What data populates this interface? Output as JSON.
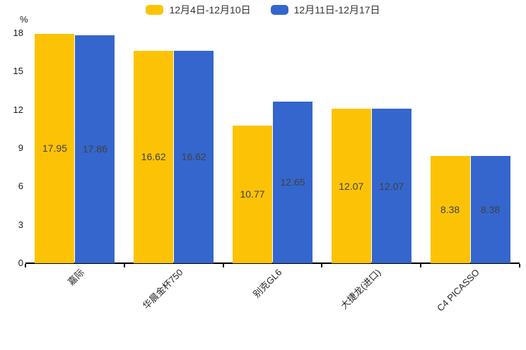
{
  "chart_data": {
    "type": "bar",
    "title": "",
    "ylabel": "%",
    "ylim": [
      0,
      18
    ],
    "yticks": [
      0,
      3,
      6,
      9,
      12,
      15,
      18
    ],
    "grid": false,
    "legend_position": "top-center",
    "value_labels": "inside-center",
    "x_label_rotation_deg": 45,
    "categories": [
      "嘉际",
      "华晨金杯750",
      "别克GL6",
      "大捷龙(进口)",
      "C4 PICASSO"
    ],
    "series": [
      {
        "name": "12月4日-12月10日",
        "color": "#fcc306",
        "values": [
          17.95,
          16.62,
          10.77,
          12.07,
          8.38
        ]
      },
      {
        "name": "12月11日-12月17日",
        "color": "#3566cd",
        "values": [
          17.86,
          16.62,
          12.65,
          12.07,
          8.38
        ]
      }
    ]
  },
  "colors": {
    "axis_line": "#000000",
    "tick_label": "#1a1a1a",
    "value_label": "#404040",
    "background": "#ffffff"
  }
}
